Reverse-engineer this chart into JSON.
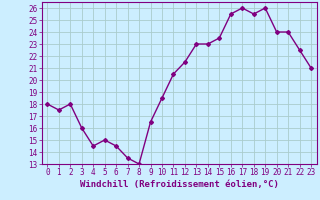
{
  "hours": [
    0,
    1,
    2,
    3,
    4,
    5,
    6,
    7,
    8,
    9,
    10,
    11,
    12,
    13,
    14,
    15,
    16,
    17,
    18,
    19,
    20,
    21,
    22,
    23
  ],
  "windchill": [
    18,
    17.5,
    18,
    16,
    14.5,
    15,
    14.5,
    13.5,
    13,
    16.5,
    18.5,
    20.5,
    21.5,
    23,
    23,
    23.5,
    25.5,
    26,
    25.5,
    26,
    24,
    24,
    22.5,
    21
  ],
  "line_color": "#800080",
  "bg_color": "#cceeff",
  "grid_color": "#aacccc",
  "xlabel": "Windchill (Refroidissement éolien,°C)",
  "xlabel_color": "#800080",
  "ylim": [
    13,
    26.5
  ],
  "xlim": [
    -0.5,
    23.5
  ],
  "xtick_labels": [
    "0",
    "1",
    "2",
    "3",
    "4",
    "5",
    "6",
    "7",
    "8",
    "9",
    "10",
    "11",
    "12",
    "13",
    "14",
    "15",
    "16",
    "17",
    "18",
    "19",
    "20",
    "21",
    "22",
    "23"
  ],
  "marker": "D",
  "marker_size": 2,
  "line_width": 1.0,
  "tick_fontsize": 5.5,
  "xlabel_fontsize": 6.5
}
